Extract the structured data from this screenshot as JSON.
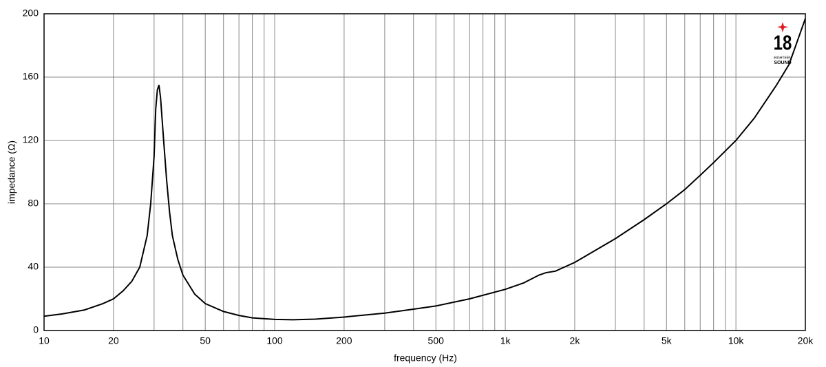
{
  "chart_data": {
    "type": "line",
    "xlabel": "frequency (Hz)",
    "ylabel": "impedance (Ω)",
    "xscale": "log",
    "grid": true,
    "xlim": [
      10,
      20000
    ],
    "ylim": [
      0,
      200
    ],
    "xticks": [
      10,
      20,
      50,
      100,
      200,
      500,
      {
        "value": 1000,
        "label": "1k"
      },
      {
        "value": 2000,
        "label": "2k"
      },
      {
        "value": 5000,
        "label": "5k"
      },
      {
        "value": 10000,
        "label": "10k"
      },
      {
        "value": 20000,
        "label": "20k"
      }
    ],
    "xgrid_minor": [
      30,
      40,
      60,
      70,
      80,
      90,
      300,
      400,
      600,
      700,
      800,
      900,
      3000,
      4000,
      6000,
      7000,
      8000,
      9000
    ],
    "yticks": [
      0,
      40,
      80,
      120,
      160,
      200
    ],
    "logo": {
      "number": "18",
      "line1": "EIGHTEEN",
      "line2": "SOUND"
    },
    "series": [
      {
        "color": "#000000",
        "x": [
          10,
          12,
          15,
          18,
          20,
          22,
          24,
          26,
          28,
          29,
          30,
          30.5,
          31,
          31.5,
          32,
          33,
          34,
          35,
          36,
          38,
          40,
          45,
          50,
          60,
          70,
          80,
          100,
          120,
          150,
          200,
          300,
          400,
          500,
          700,
          1000,
          1200,
          1400,
          1500,
          1650,
          1800,
          2000,
          3000,
          4000,
          5000,
          6000,
          7000,
          8000,
          10000,
          12000,
          15000,
          17000,
          20000
        ],
        "values": [
          9,
          10.5,
          13,
          17,
          20,
          25,
          31,
          40,
          60,
          80,
          110,
          140,
          152,
          155,
          147,
          120,
          95,
          75,
          60,
          45,
          35,
          23,
          17,
          12,
          9.5,
          8,
          7,
          6.8,
          7.2,
          8.5,
          11,
          13.5,
          15.5,
          20,
          26,
          30,
          35,
          36.5,
          37.5,
          40,
          43,
          58,
          70,
          80,
          89,
          98,
          106,
          120,
          134,
          155,
          168,
          197
        ]
      }
    ]
  }
}
